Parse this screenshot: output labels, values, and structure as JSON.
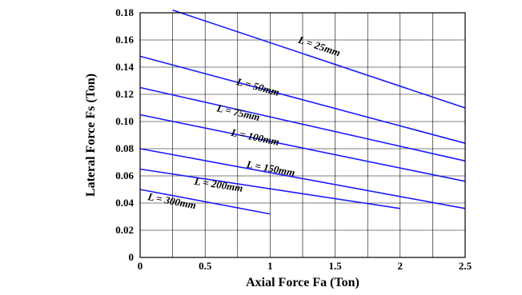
{
  "chart_data": {
    "type": "line",
    "title": "",
    "xlabel": "Axial Force Fa (Ton)",
    "ylabel": "Lateral Force Fs (Ton)",
    "xlim": [
      0,
      2.5
    ],
    "ylim": [
      0,
      0.18
    ],
    "x_ticks": [
      {
        "value": 0,
        "label": "0"
      },
      {
        "value": 0.5,
        "label": "0.5"
      },
      {
        "value": 1,
        "label": "1"
      },
      {
        "value": 1.5,
        "label": "1.5"
      },
      {
        "value": 2,
        "label": "2"
      },
      {
        "value": 2.5,
        "label": "2.5"
      }
    ],
    "y_ticks": [
      {
        "value": 0,
        "label": "0"
      },
      {
        "value": 0.02,
        "label": "0.02"
      },
      {
        "value": 0.04,
        "label": "0.04"
      },
      {
        "value": 0.06,
        "label": "0.06"
      },
      {
        "value": 0.08,
        "label": "0.08"
      },
      {
        "value": 0.1,
        "label": "0.10"
      },
      {
        "value": 0.12,
        "label": "0.12"
      },
      {
        "value": 0.14,
        "label": "0.14"
      },
      {
        "value": 0.16,
        "label": "0.16"
      },
      {
        "value": 0.18,
        "label": "0.18"
      }
    ],
    "grid": true,
    "line_color": "#1a1aff",
    "series": [
      {
        "name": "L = 25mm",
        "x": [
          0.25,
          2.5
        ],
        "y": [
          0.182,
          0.11
        ],
        "label_at": [
          1.37,
          0.153
        ]
      },
      {
        "name": "L = 50mm",
        "x": [
          0,
          2.5
        ],
        "y": [
          0.148,
          0.084
        ],
        "label_at": [
          0.9,
          0.123
        ]
      },
      {
        "name": "L = 75mm",
        "x": [
          0,
          2.5
        ],
        "y": [
          0.125,
          0.071
        ],
        "label_at": [
          0.75,
          0.104
        ]
      },
      {
        "name": "L = 100mm",
        "x": [
          0,
          2.5
        ],
        "y": [
          0.105,
          0.056
        ],
        "label_at": [
          0.88,
          0.086
        ]
      },
      {
        "name": "L = 150mm",
        "x": [
          0,
          2.5
        ],
        "y": [
          0.08,
          0.036
        ],
        "label_at": [
          1.0,
          0.063
        ]
      },
      {
        "name": "L = 200mm",
        "x": [
          0,
          2.0
        ],
        "y": [
          0.065,
          0.036
        ],
        "label_at": [
          0.6,
          0.051
        ]
      },
      {
        "name": "L = 300mm",
        "x": [
          0,
          1.0
        ],
        "y": [
          0.05,
          0.032
        ],
        "label_at": [
          0.24,
          0.039
        ]
      }
    ]
  }
}
